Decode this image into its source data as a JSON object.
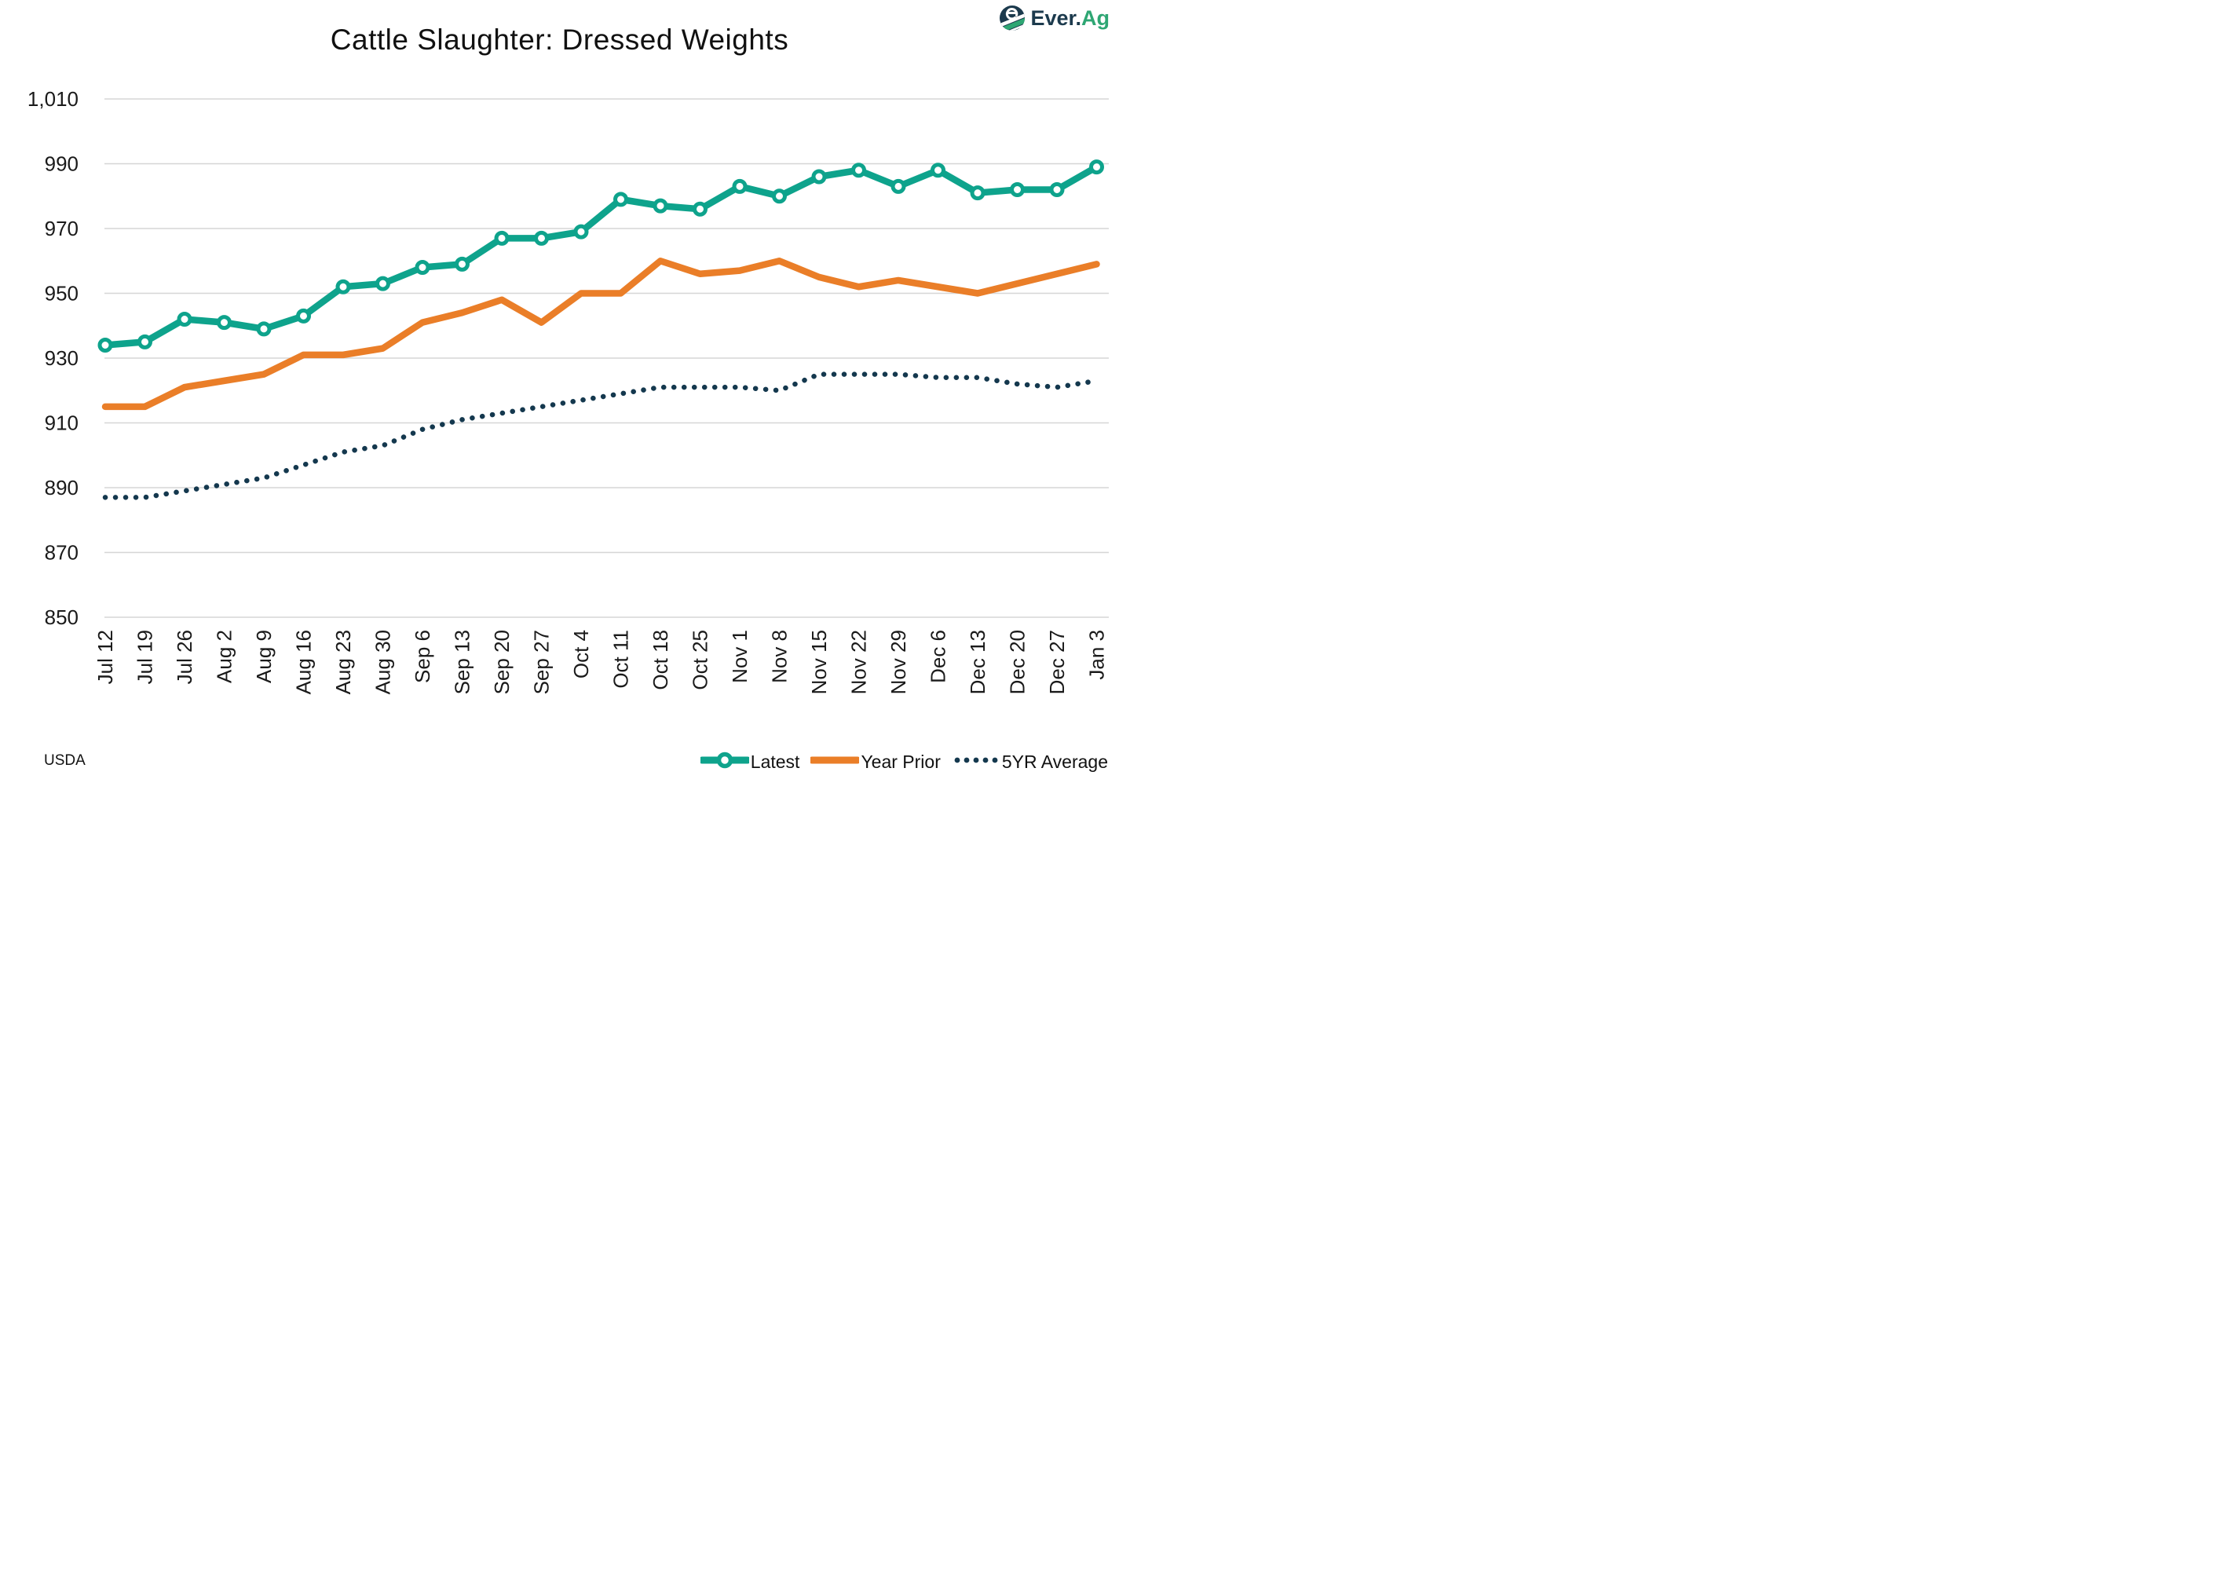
{
  "title": "Cattle Slaughter: Dressed Weights",
  "source": "USDA",
  "logo": {
    "text_primary": "Ever.",
    "text_accent": "Ag"
  },
  "colors": {
    "latest": "#0EA38C",
    "year_prior": "#EA7E28",
    "five_yr_average": "#14384E",
    "gridline": "#D6D6D6",
    "text": "#1A1A1A",
    "logo_navy": "#1C3A4D",
    "logo_green": "#2EA673"
  },
  "chart_data": {
    "type": "line",
    "title": "Cattle Slaughter: Dressed Weights",
    "xlabel": "",
    "ylabel": "",
    "ylim": [
      850,
      1010
    ],
    "ytick_step": 20,
    "grid": "horizontal",
    "legend_position": "bottom-right",
    "categories": [
      "Jul 12",
      "Jul 19",
      "Jul 26",
      "Aug 2",
      "Aug 9",
      "Aug 16",
      "Aug 23",
      "Aug 30",
      "Sep 6",
      "Sep 13",
      "Sep 20",
      "Sep 27",
      "Oct 4",
      "Oct 11",
      "Oct 18",
      "Oct 25",
      "Nov 1",
      "Nov 8",
      "Nov 15",
      "Nov 22",
      "Nov 29",
      "Dec 6",
      "Dec 13",
      "Dec 20",
      "Dec 27",
      "Jan 3"
    ],
    "series": [
      {
        "name": "Latest",
        "style": "line-markers",
        "color": "#0EA38C",
        "values": [
          934,
          935,
          942,
          941,
          939,
          943,
          952,
          953,
          958,
          959,
          967,
          967,
          969,
          979,
          977,
          976,
          983,
          980,
          986,
          988,
          983,
          988,
          981,
          982,
          982,
          989
        ]
      },
      {
        "name": "Year Prior",
        "style": "line",
        "color": "#EA7E28",
        "values": [
          915,
          915,
          921,
          923,
          925,
          931,
          931,
          933,
          941,
          944,
          948,
          941,
          950,
          950,
          960,
          956,
          957,
          960,
          955,
          952,
          954,
          952,
          950,
          953,
          956,
          959
        ]
      },
      {
        "name": "5YR Average",
        "style": "dots",
        "color": "#14384E",
        "values": [
          887,
          887,
          889,
          891,
          893,
          897,
          901,
          903,
          908,
          911,
          913,
          915,
          917,
          919,
          921,
          921,
          921,
          920,
          925,
          925,
          925,
          924,
          924,
          922,
          921,
          923
        ]
      }
    ]
  }
}
